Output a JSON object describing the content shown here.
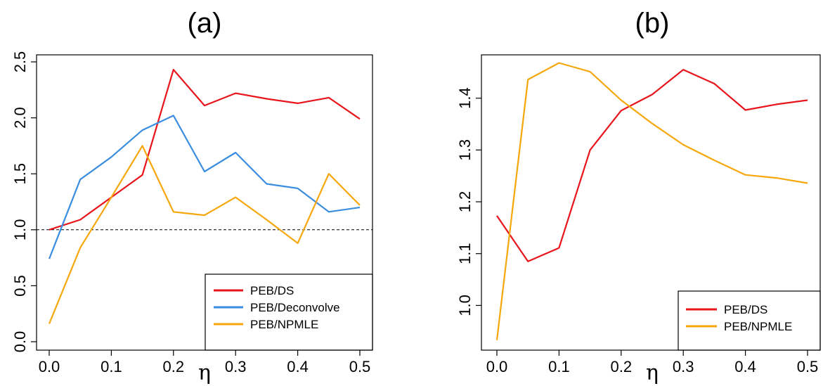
{
  "chart_data": [
    {
      "type": "line",
      "title": "(a)",
      "xlabel": "η",
      "ylabel": "",
      "xlim": [
        0.0,
        0.5
      ],
      "ylim": [
        0.0,
        2.5
      ],
      "xticks": [
        "0.0",
        "0.1",
        "0.2",
        "0.3",
        "0.4",
        "0.5"
      ],
      "yticks": [
        "0.0",
        "0.5",
        "1.0",
        "1.5",
        "2.0",
        "2.5"
      ],
      "reference_line": {
        "y": 1.0,
        "style": "dashed"
      },
      "legend_position": "bottom-right",
      "x": [
        0.0,
        0.05,
        0.1,
        0.15,
        0.2,
        0.25,
        0.3,
        0.35,
        0.4,
        0.45,
        0.5
      ],
      "series": [
        {
          "name": "PEB/DS",
          "color": "#e8141c",
          "values": [
            1.0,
            1.09,
            1.29,
            1.49,
            2.43,
            2.11,
            2.22,
            2.17,
            2.13,
            2.18,
            1.99
          ]
        },
        {
          "name": "PEB/Deconvolve",
          "color": "#3b8de0",
          "values": [
            0.74,
            1.45,
            1.65,
            1.89,
            2.02,
            1.52,
            1.69,
            1.41,
            1.37,
            1.16,
            1.2
          ]
        },
        {
          "name": "PEB/NPMLE",
          "color": "#f5a70b",
          "values": [
            0.16,
            0.84,
            1.29,
            1.75,
            1.16,
            1.13,
            1.29,
            1.09,
            0.88,
            1.5,
            1.22
          ]
        }
      ]
    },
    {
      "type": "line",
      "title": "(b)",
      "xlabel": "η",
      "ylabel": "",
      "xlim": [
        0.0,
        0.5
      ],
      "ylim": [
        0.93,
        1.47
      ],
      "xticks": [
        "0.0",
        "0.1",
        "0.2",
        "0.3",
        "0.4",
        "0.5"
      ],
      "yticks": [
        "1.0",
        "1.1",
        "1.2",
        "1.3",
        "1.4"
      ],
      "legend_position": "bottom-right",
      "x": [
        0.0,
        0.05,
        0.1,
        0.15,
        0.2,
        0.25,
        0.3,
        0.35,
        0.4,
        0.45,
        0.5
      ],
      "series": [
        {
          "name": "PEB/DS",
          "color": "#e8141c",
          "values": [
            1.173,
            1.085,
            1.111,
            1.3,
            1.376,
            1.407,
            1.455,
            1.428,
            1.377,
            1.388,
            1.396
          ]
        },
        {
          "name": "PEB/NPMLE",
          "color": "#f5a70b",
          "values": [
            0.933,
            1.436,
            1.468,
            1.451,
            1.396,
            1.351,
            1.31,
            1.28,
            1.252,
            1.246,
            1.236
          ]
        }
      ]
    }
  ]
}
